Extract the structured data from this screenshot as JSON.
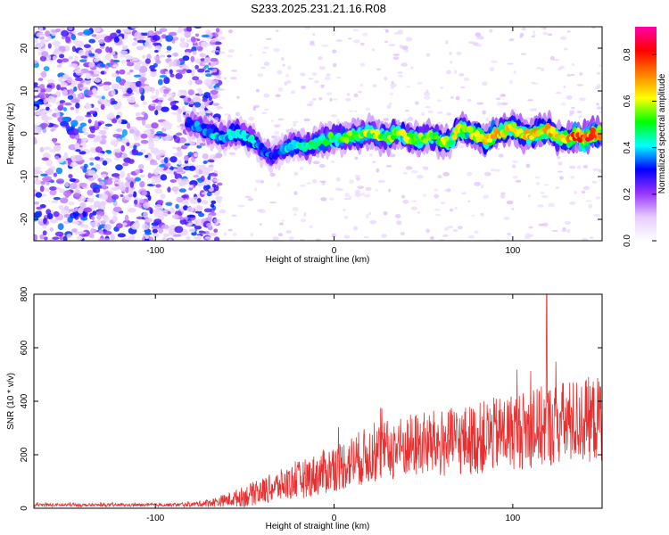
{
  "title": "S233.2025.231.21.16.R08",
  "chart_data": [
    {
      "type": "heatmap",
      "xlabel": "Height of straight line (km)",
      "ylabel": "Frequency (Hz)",
      "xlim": [
        -168,
        150
      ],
      "ylim": [
        -25,
        25
      ],
      "xticks": [
        -100,
        0,
        100
      ],
      "yticks": [
        -20,
        -10,
        0,
        10,
        20
      ],
      "colorbar": {
        "label": "Normalized spectral amplitude",
        "range": [
          0,
          0.92
        ],
        "ticks": [
          0.0,
          0.2,
          0.4,
          0.6,
          0.8
        ],
        "colors": [
          "#ffffff",
          "#e6ccff",
          "#9933ff",
          "#0000ff",
          "#00ffff",
          "#00ff00",
          "#ffff00",
          "#ff8000",
          "#ff0000",
          "#ff00aa"
        ]
      },
      "ridge": {
        "x": [
          -82,
          -75,
          -70,
          -65,
          -60,
          -55,
          -50,
          -45,
          -40,
          -35,
          -30,
          -25,
          -20,
          -15,
          -10,
          -5,
          0,
          5,
          10,
          15,
          20,
          25,
          30,
          35,
          40,
          45,
          50,
          55,
          60,
          65,
          70,
          75,
          80,
          85,
          90,
          95,
          100,
          105,
          110,
          115,
          120,
          125,
          130,
          135,
          140,
          145,
          150
        ],
        "y": [
          2.5,
          1.5,
          0.5,
          -0.5,
          -0.5,
          0.5,
          -0.5,
          -1.5,
          -4,
          -5.5,
          -4,
          -3,
          -2.5,
          -3,
          -2,
          -1.5,
          -1,
          -1,
          -0.5,
          -0.5,
          0.5,
          -0.5,
          -1,
          0.5,
          -0.5,
          -1.5,
          -1,
          -0.5,
          -1.5,
          -2,
          1.5,
          0.5,
          -0.5,
          -1.5,
          0,
          0.5,
          1.5,
          0,
          -0.5,
          0.5,
          1,
          -1,
          -1.5,
          -0.5,
          -1,
          0,
          0
        ],
        "peak": [
          0.35,
          0.4,
          0.4,
          0.45,
          0.45,
          0.45,
          0.45,
          0.45,
          0.4,
          0.35,
          0.35,
          0.45,
          0.45,
          0.5,
          0.5,
          0.55,
          0.55,
          0.55,
          0.6,
          0.6,
          0.6,
          0.6,
          0.6,
          0.65,
          0.6,
          0.6,
          0.6,
          0.6,
          0.6,
          0.6,
          0.65,
          0.65,
          0.7,
          0.7,
          0.75,
          0.7,
          0.7,
          0.7,
          0.75,
          0.7,
          0.7,
          0.7,
          0.7,
          0.8,
          0.85,
          0.8,
          0.75
        ]
      },
      "noise_region": {
        "x_end": -70,
        "amplitude": 0.3
      }
    },
    {
      "type": "line",
      "xlabel": "Height of straight line (km)",
      "ylabel": "SNR (10 * v/v)",
      "xlim": [
        -168,
        150
      ],
      "ylim": [
        0,
        800
      ],
      "xticks": [
        -100,
        0,
        100
      ],
      "yticks": [
        0,
        200,
        400,
        600,
        800
      ],
      "color": "#e83030",
      "envelope": {
        "x": [
          -168,
          -100,
          -80,
          -70,
          -60,
          -50,
          -40,
          -30,
          -20,
          -10,
          0,
          10,
          20,
          30,
          40,
          50,
          60,
          70,
          80,
          90,
          100,
          110,
          120,
          130,
          140,
          150
        ],
        "mean": [
          12,
          12,
          14,
          20,
          30,
          45,
          65,
          85,
          105,
          125,
          150,
          175,
          200,
          215,
          230,
          240,
          240,
          250,
          260,
          275,
          290,
          295,
          310,
          320,
          330,
          335
        ],
        "spread": [
          6,
          6,
          8,
          15,
          25,
          40,
          50,
          60,
          70,
          80,
          90,
          100,
          110,
          115,
          120,
          125,
          130,
          130,
          135,
          140,
          145,
          150,
          155,
          160,
          160,
          160
        ]
      },
      "spike": {
        "x": 119,
        "y": 810
      }
    }
  ]
}
